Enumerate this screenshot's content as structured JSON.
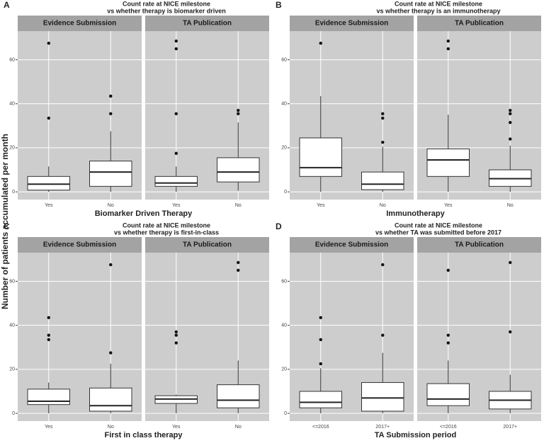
{
  "ylabel": "Number of patients accumulated per month",
  "chart_data": [
    {
      "type": "box",
      "label": "A",
      "title": [
        "Count rate at NICE milestone",
        "vs whether therapy is biomarker driven"
      ],
      "xlabel": "Biomarker Driven Therapy",
      "categories": [
        "Yes",
        "No"
      ],
      "ylim": [
        -3.5,
        73
      ],
      "yticks": [
        0,
        20,
        40,
        60
      ],
      "facets": [
        {
          "name": "Evidence Submission",
          "boxes": [
            {
              "whisker_low": 0,
              "q1": 0.8,
              "median": 3.5,
              "q3": 7,
              "whisker_high": 11.5,
              "outliers": [
                33.5,
                67.5
              ]
            },
            {
              "whisker_low": 0,
              "q1": 2.5,
              "median": 9,
              "q3": 14,
              "whisker_high": 27.5,
              "outliers": [
                35.5,
                43.5
              ]
            }
          ]
        },
        {
          "name": "TA Publication",
          "boxes": [
            {
              "whisker_low": 0,
              "q1": 2.5,
              "median": 4,
              "q3": 7,
              "whisker_high": 11.5,
              "outliers": [
                17.5,
                35.5,
                65,
                68.5
              ]
            },
            {
              "whisker_low": 0.5,
              "q1": 4.5,
              "median": 9,
              "q3": 15.5,
              "whisker_high": 31.5,
              "outliers": [
                35.5,
                37
              ]
            }
          ]
        }
      ]
    },
    {
      "type": "box",
      "label": "B",
      "title": [
        "Count rate at NICE milestone",
        "vs whether therapy is an immunotherapy"
      ],
      "xlabel": "Immunotherapy",
      "categories": [
        "Yes",
        "No"
      ],
      "ylim": [
        -3.5,
        73
      ],
      "yticks": [
        0,
        20,
        40,
        60
      ],
      "facets": [
        {
          "name": "Evidence Submission",
          "boxes": [
            {
              "whisker_low": 0,
              "q1": 7,
              "median": 11,
              "q3": 24.5,
              "whisker_high": 43.5,
              "outliers": [
                67.5
              ]
            },
            {
              "whisker_low": 0,
              "q1": 1,
              "median": 3.5,
              "q3": 9,
              "whisker_high": 20.5,
              "outliers": [
                22.5,
                33.5,
                35.5
              ]
            }
          ]
        },
        {
          "name": "TA Publication",
          "boxes": [
            {
              "whisker_low": 0,
              "q1": 7,
              "median": 14.5,
              "q3": 19.5,
              "whisker_high": 35,
              "outliers": [
                65,
                68.5
              ]
            },
            {
              "whisker_low": 0,
              "q1": 2.5,
              "median": 6,
              "q3": 10,
              "whisker_high": 21,
              "outliers": [
                24,
                31.5,
                35.5,
                37
              ]
            }
          ]
        }
      ]
    },
    {
      "type": "box",
      "label": "C",
      "title": [
        "Count rate at NICE milestone",
        "vs whether therapy is first-in-class"
      ],
      "xlabel": "First in class therapy",
      "categories": [
        "Yes",
        "No"
      ],
      "ylim": [
        -3.5,
        73
      ],
      "yticks": [
        0,
        20,
        40,
        60
      ],
      "facets": [
        {
          "name": "Evidence Submission",
          "boxes": [
            {
              "whisker_low": 0,
              "q1": 4,
              "median": 5.5,
              "q3": 11,
              "whisker_high": 14,
              "outliers": [
                33.5,
                35.5,
                43.5
              ]
            },
            {
              "whisker_low": 0,
              "q1": 1,
              "median": 3.5,
              "q3": 11.5,
              "whisker_high": 22.5,
              "outliers": [
                27.5,
                67.5
              ]
            }
          ]
        },
        {
          "name": "TA Publication",
          "boxes": [
            {
              "whisker_low": 0,
              "q1": 4.5,
              "median": 6.5,
              "q3": 8,
              "whisker_high": 8.5,
              "outliers": [
                32,
                35.5,
                37
              ]
            },
            {
              "whisker_low": 0,
              "q1": 2.5,
              "median": 6,
              "q3": 13,
              "whisker_high": 24,
              "outliers": [
                65,
                68.5
              ]
            }
          ]
        }
      ]
    },
    {
      "type": "box",
      "label": "D",
      "title": [
        "Count rate at NICE milestone",
        "vs whether TA was submitted before 2017"
      ],
      "xlabel": "TA Submission period",
      "categories": [
        "<=2016",
        "2017+"
      ],
      "ylim": [
        -3.5,
        73
      ],
      "yticks": [
        0,
        20,
        40,
        60
      ],
      "facets": [
        {
          "name": "Evidence Submission",
          "boxes": [
            {
              "whisker_low": 0,
              "q1": 2.5,
              "median": 5,
              "q3": 10,
              "whisker_high": 20.5,
              "outliers": [
                22.5,
                33.5,
                43.5
              ]
            },
            {
              "whisker_low": 0,
              "q1": 1,
              "median": 7,
              "q3": 14,
              "whisker_high": 27.5,
              "outliers": [
                35.5,
                67.5
              ]
            }
          ]
        },
        {
          "name": "TA Publication",
          "boxes": [
            {
              "whisker_low": 0,
              "q1": 3.5,
              "median": 6.5,
              "q3": 13.5,
              "whisker_high": 24,
              "outliers": [
                32,
                35.5,
                65
              ]
            },
            {
              "whisker_low": 0,
              "q1": 2,
              "median": 6,
              "q3": 10,
              "whisker_high": 17.5,
              "outliers": [
                37,
                68.5
              ]
            }
          ]
        }
      ]
    }
  ]
}
